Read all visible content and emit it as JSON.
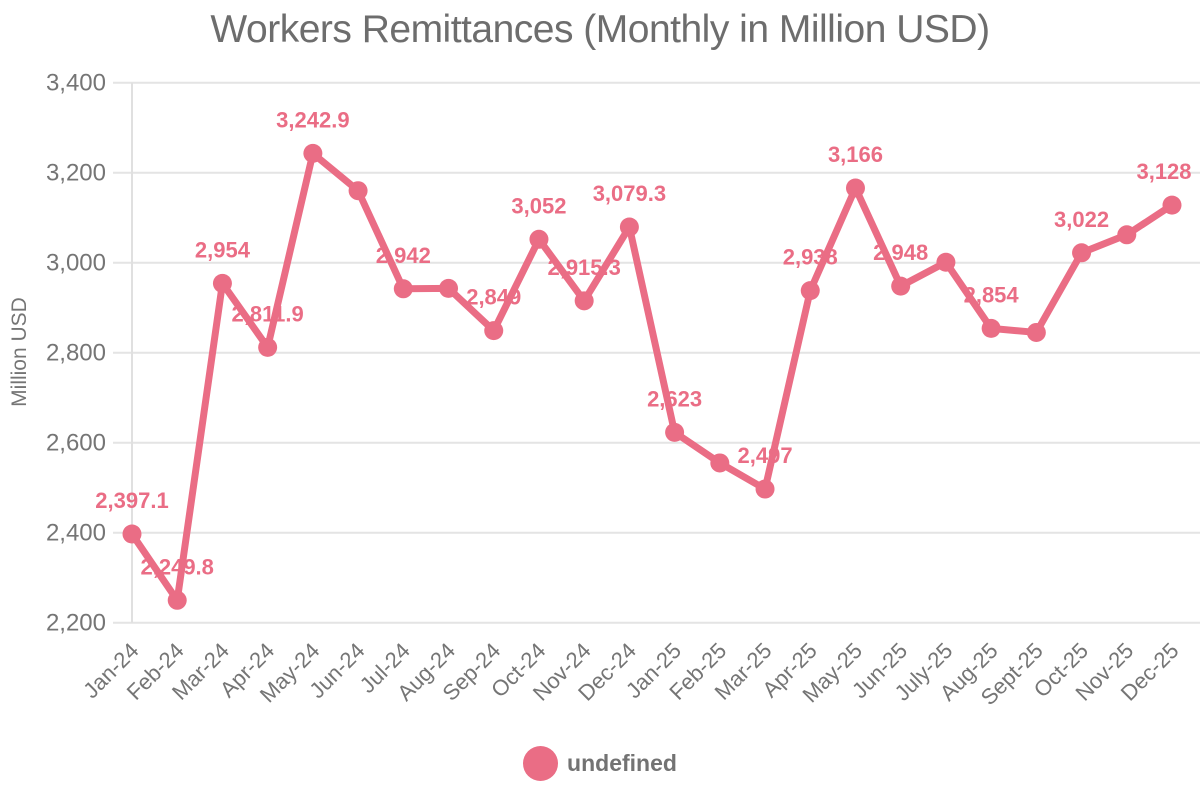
{
  "page": {
    "title": "Workers Remittances (Monthly in Million USD)"
  },
  "colors": {
    "accent_pink": "#ea6d85",
    "data_label": "#ea6d85",
    "grid": "#e4e4e4",
    "axis_line": "#e0e0e0",
    "tick_text": "#757575",
    "title_text": "#6d6d6d",
    "legend_text": "#737373",
    "background": "#ffffff"
  },
  "chart_data": {
    "type": "line",
    "title": "Workers Remittances (Monthly in Million USD)",
    "xlabel": "",
    "ylabel": "Million USD",
    "categories": [
      "Jan-24",
      "Feb-24",
      "Mar-24",
      "Apr-24",
      "May-24",
      "Jun-24",
      "Jul-24",
      "Aug-24",
      "Sep-24",
      "Oct-24",
      "Nov-24",
      "Dec-24",
      "Jan-25",
      "Feb-25",
      "Mar-25",
      "Apr-25",
      "May-25",
      "Jun-25",
      "July-25",
      "Aug-25",
      "Sept-25",
      "Oct-25",
      "Nov-25",
      "Dec-25"
    ],
    "series": [
      {
        "name": "undefined",
        "values": [
          2397.1,
          2249.8,
          2954,
          2811.9,
          3242.9,
          3160,
          2942,
          2943,
          2849,
          3052,
          2915.3,
          3079.3,
          2623,
          2555,
          2497,
          2938,
          3166,
          2948,
          3001,
          2854,
          2845,
          3022,
          3062,
          3128
        ],
        "point_labels": [
          "2,397.1",
          "2,249.8",
          "2,954",
          "2,811.9",
          "3,242.9",
          "",
          "2,942",
          "",
          "2,849",
          "3,052",
          "2,915.3",
          "3,079.3",
          "2,623",
          "",
          "2,497",
          "2,938",
          "3,166",
          "2,948",
          "",
          "2,854",
          "",
          "3,022",
          "",
          "3,128"
        ]
      }
    ],
    "ylim": [
      2200,
      3400
    ],
    "ytick_interval": 200,
    "ytick_labels": [
      "2,200",
      "2,400",
      "2,600",
      "2,800",
      "3,000",
      "3,200",
      "3,400"
    ],
    "grid": "horizontal-only",
    "legend_position": "bottom"
  },
  "legend": {
    "items": [
      {
        "label": "undefined",
        "color": "#ea6d85"
      }
    ]
  }
}
